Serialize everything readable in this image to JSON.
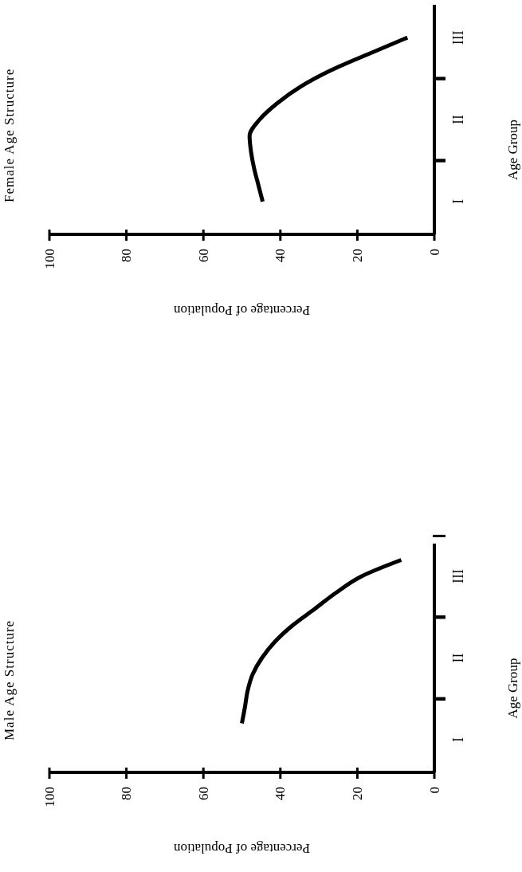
{
  "chart_data": [
    {
      "type": "line",
      "orientation": "horizontal",
      "title": "Female Age Structure",
      "xlabel": "Percentage of Population",
      "ylabel": "Age Group",
      "xlim": [
        100,
        0
      ],
      "xticks": [
        100,
        80,
        60,
        40,
        20,
        0
      ],
      "categories": [
        null,
        null,
        "III",
        null,
        null,
        null,
        null,
        "II",
        null,
        null,
        null,
        null,
        "I",
        null,
        null
      ],
      "series": [
        {
          "color": "#000000",
          "values": [
            null,
            null,
            7,
            17.1,
            26.9,
            34.8,
            40.8,
            45.4,
            48,
            47.6,
            46.8,
            45.7,
            44.6,
            null,
            null
          ]
        }
      ]
    },
    {
      "type": "line",
      "orientation": "horizontal",
      "title": "Male Age Structure",
      "xlabel": "Percentage of Population",
      "ylabel": "Age Group",
      "xlim": [
        100,
        0
      ],
      "xticks": [
        100,
        80,
        60,
        40,
        20,
        0
      ],
      "categories": [
        null,
        null,
        "III",
        null,
        null,
        null,
        null,
        "II",
        null,
        null,
        null,
        null,
        "I",
        null,
        null
      ],
      "series": [
        {
          "color": "#000000",
          "values": [
            null,
            8.6,
            18.9,
            25.5,
            31.1,
            36.8,
            41.4,
            44.8,
            47.2,
            48.5,
            49.2,
            50,
            null,
            null,
            null
          ]
        }
      ]
    }
  ]
}
